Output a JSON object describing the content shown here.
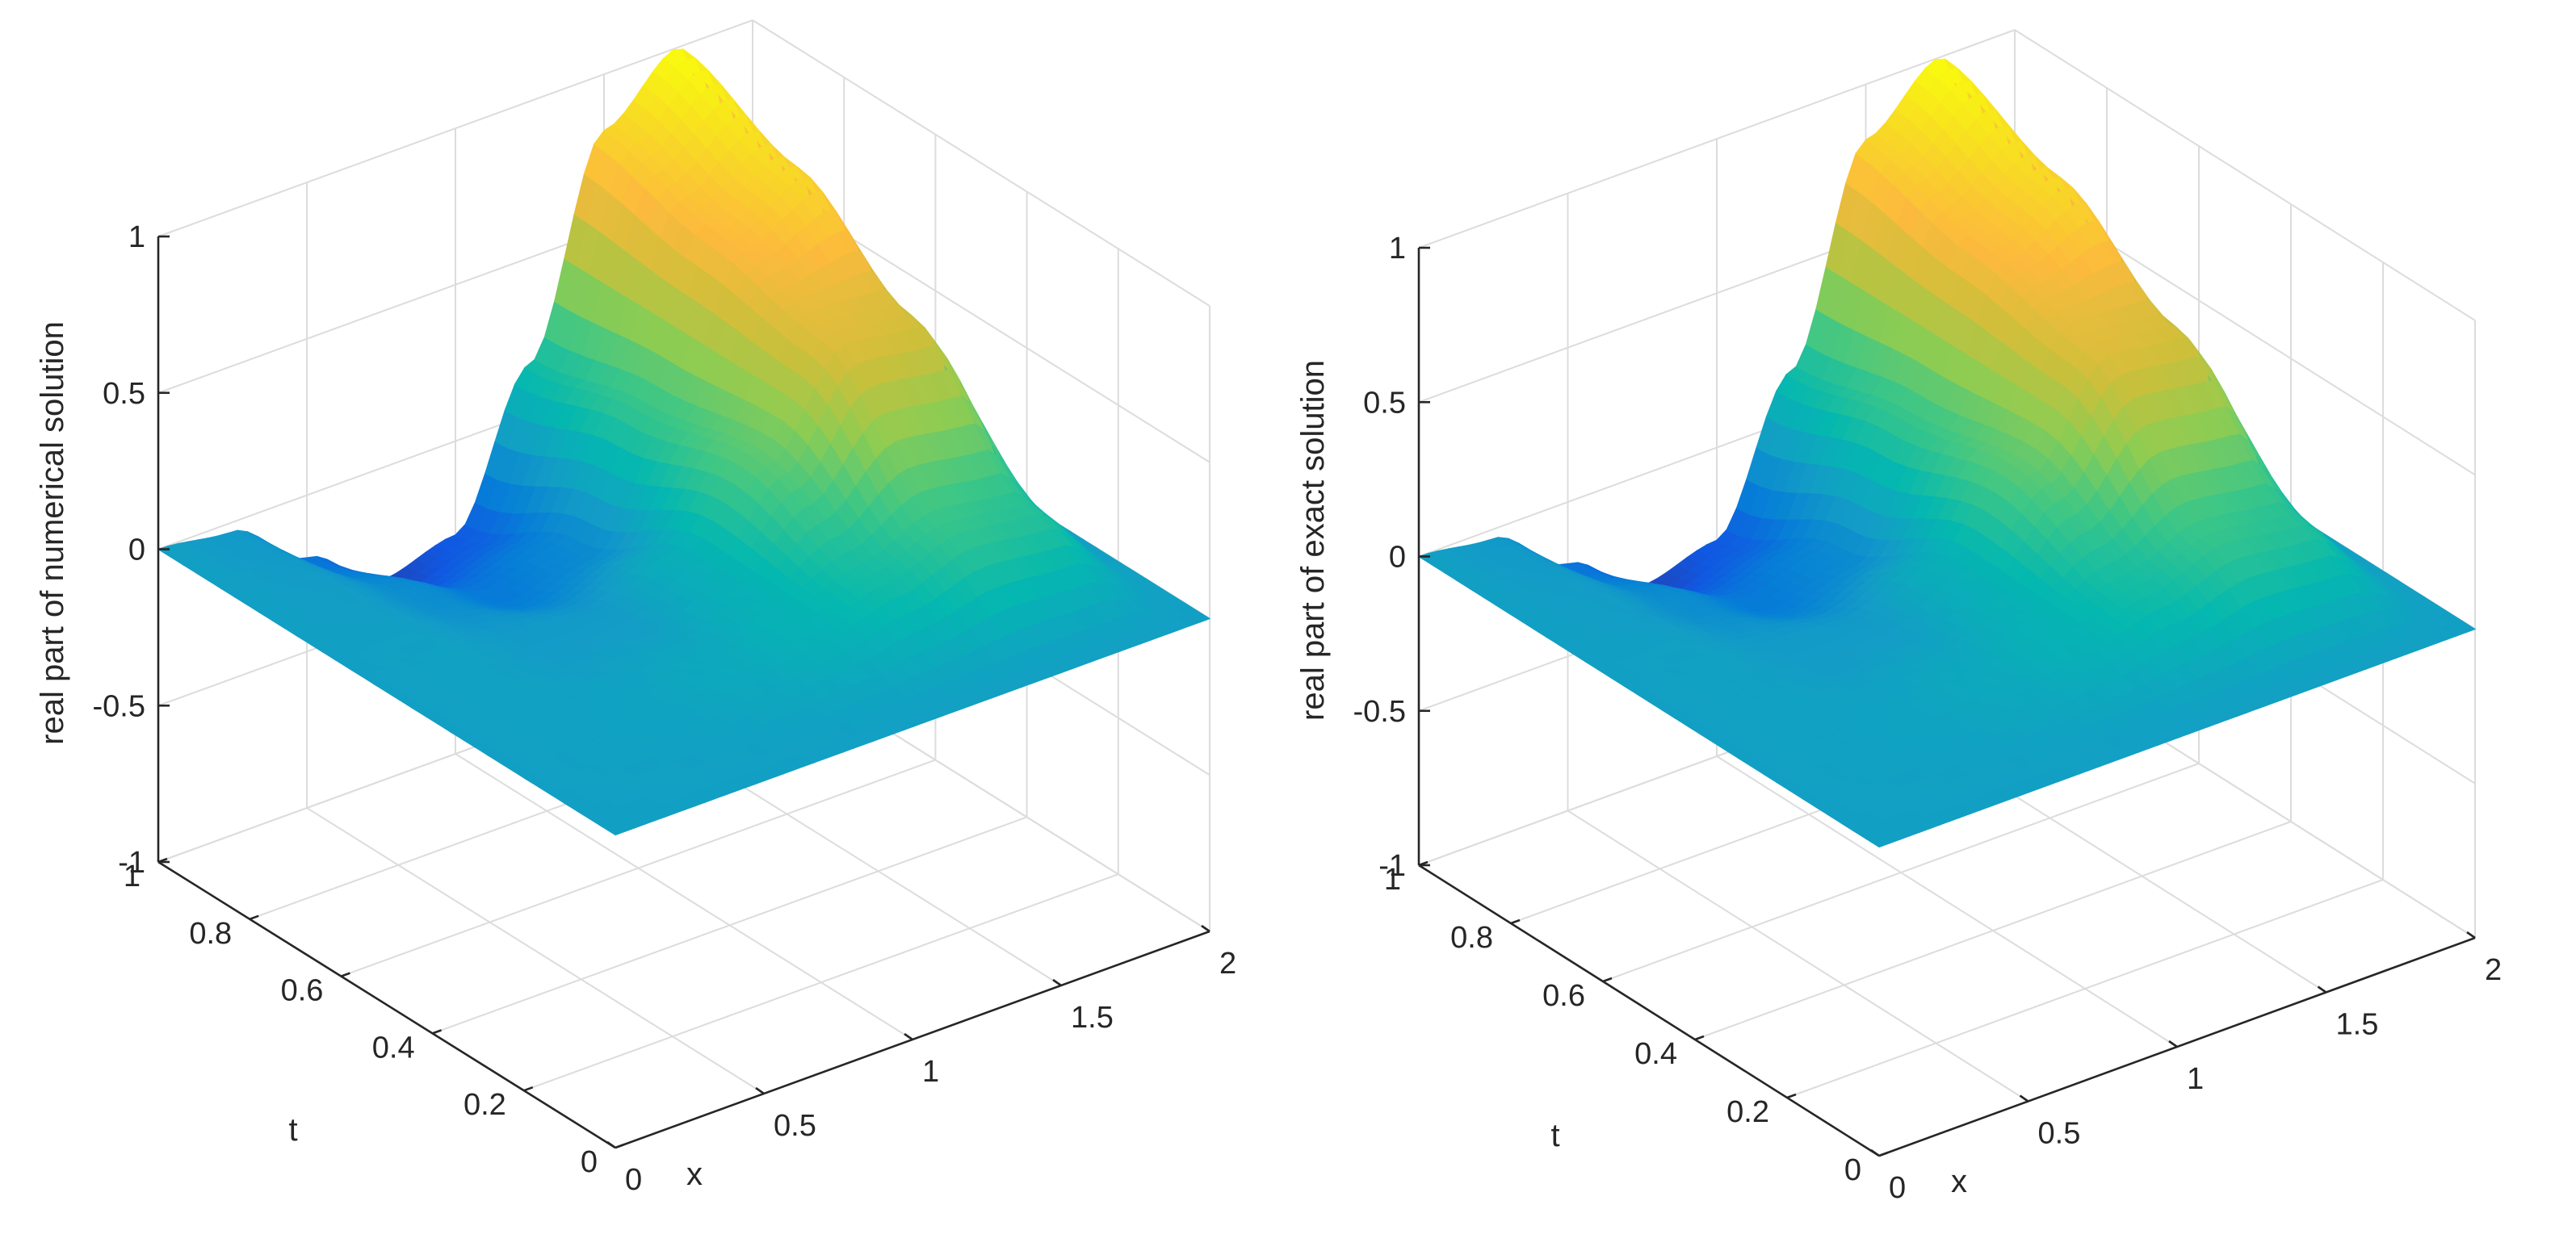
{
  "chart_data": [
    {
      "type": "surface",
      "title": "",
      "xlabel": "x",
      "ylabel": "t",
      "zlabel": "real part of numerical solution",
      "xlim": [
        0,
        2
      ],
      "ylim": [
        0,
        1
      ],
      "zlim": [
        -1,
        1
      ],
      "x_ticks": [
        "0",
        "0.5",
        "1",
        "1.5",
        "2"
      ],
      "y_ticks": [
        "0",
        "0.2",
        "0.4",
        "0.6",
        "0.8",
        "1"
      ],
      "z_ticks": [
        "-1",
        "-0.5",
        "0",
        "0.5",
        "1"
      ],
      "colormap": "parula",
      "grid": true,
      "surface": {
        "x": [
          0,
          0.25,
          0.5,
          0.75,
          1.0,
          1.25,
          1.5,
          1.75,
          2.0
        ],
        "t": [
          0,
          0.25,
          0.5,
          0.75,
          1.0
        ],
        "z": [
          [
            0,
            0,
            0,
            0,
            0,
            0,
            0,
            0,
            0
          ],
          [
            0,
            0.01,
            0.02,
            0.05,
            0.1,
            0.17,
            0.25,
            0.22,
            0
          ],
          [
            0,
            0.01,
            -0.02,
            -0.02,
            0.08,
            0.33,
            0.63,
            0.6,
            0
          ],
          [
            0,
            -0.01,
            -0.09,
            -0.18,
            -0.12,
            0.25,
            0.72,
            0.85,
            0
          ],
          [
            0,
            -0.03,
            -0.2,
            -0.36,
            -0.3,
            0.16,
            0.82,
            1.0,
            0
          ]
        ]
      }
    },
    {
      "type": "surface",
      "title": "",
      "xlabel": "x",
      "ylabel": "t",
      "zlabel": "real part of exact solution",
      "xlim": [
        0,
        2
      ],
      "ylim": [
        0,
        1
      ],
      "zlim": [
        -1,
        1
      ],
      "x_ticks": [
        "0",
        "0.5",
        "1",
        "1.5",
        "2"
      ],
      "y_ticks": [
        "0",
        "0.2",
        "0.4",
        "0.6",
        "0.8",
        "1"
      ],
      "z_ticks": [
        "-1",
        "-0.5",
        "0",
        "0.5",
        "1"
      ],
      "colormap": "parula",
      "grid": true,
      "surface": {
        "x": [
          0,
          0.25,
          0.5,
          0.75,
          1.0,
          1.25,
          1.5,
          1.75,
          2.0
        ],
        "t": [
          0,
          0.25,
          0.5,
          0.75,
          1.0
        ],
        "z": [
          [
            0,
            0,
            0,
            0,
            0,
            0,
            0,
            0,
            0
          ],
          [
            0,
            0.01,
            0.02,
            0.05,
            0.1,
            0.17,
            0.25,
            0.22,
            0
          ],
          [
            0,
            0.01,
            -0.02,
            -0.02,
            0.08,
            0.33,
            0.63,
            0.6,
            0
          ],
          [
            0,
            -0.01,
            -0.09,
            -0.18,
            -0.12,
            0.25,
            0.72,
            0.85,
            0
          ],
          [
            0,
            -0.03,
            -0.2,
            -0.36,
            -0.3,
            0.16,
            0.82,
            1.0,
            0
          ]
        ]
      }
    }
  ]
}
